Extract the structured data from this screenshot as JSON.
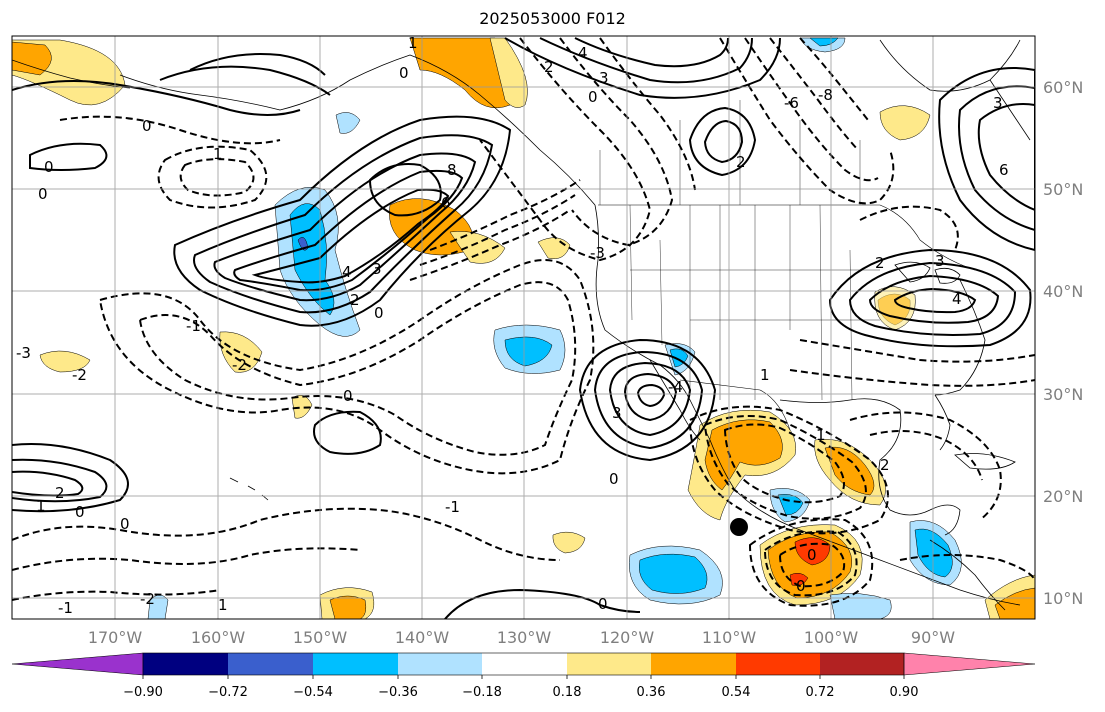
{
  "title": "2025053000 F012",
  "map": {
    "projection": "PlateCarree",
    "lon_range": [
      -178,
      -82
    ],
    "lat_range": [
      8,
      65
    ],
    "lat_ticks": [
      "60°N",
      "50°N",
      "40°N",
      "30°N",
      "20°N",
      "10°N"
    ],
    "lon_ticks": [
      "170°W",
      "160°W",
      "150°W",
      "140°W",
      "130°W",
      "120°W",
      "110°W",
      "100°W",
      "90°W"
    ],
    "grid": true,
    "contour_labels": [
      "8",
      "6",
      "4",
      "3",
      "2",
      "1",
      "0",
      "-1",
      "-2",
      "-3",
      "-4",
      "-6",
      "-8"
    ],
    "marker": {
      "name": "storm-location",
      "lon": -108.8,
      "lat": 17.2
    }
  },
  "colorbar": {
    "tick_labels": [
      "−0.90",
      "−0.72",
      "−0.54",
      "−0.36",
      "−0.18",
      "0.18",
      "0.36",
      "0.54",
      "0.72",
      "0.90"
    ],
    "colors": [
      "#9a32cd",
      "#000080",
      "#3a5fcd",
      "#00bfff",
      "#b0e2ff",
      "#ffffff",
      "#fee98a",
      "#ffa500",
      "#ff3a00",
      "#b22222",
      "#ff82ab"
    ],
    "extend": "both"
  }
}
